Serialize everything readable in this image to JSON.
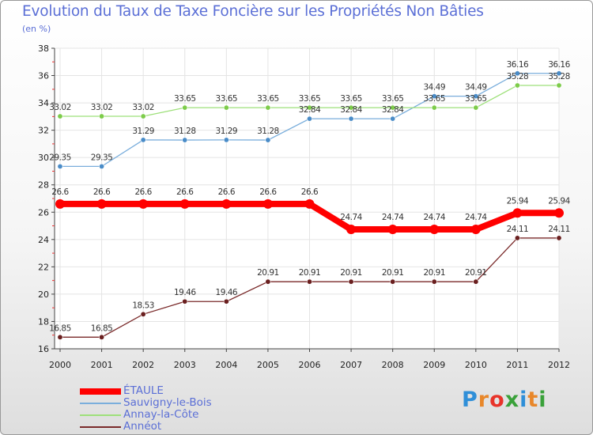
{
  "header": {
    "title": "Evolution du Taux de Taxe Foncière sur les Propriétés Non Bâties",
    "unit": "(en %)"
  },
  "logo": {
    "text": "Proxiti",
    "letters": [
      "P",
      "r",
      "o",
      "x",
      "i",
      "t",
      "i"
    ],
    "colors": [
      "#2f8fd8",
      "#e8872a",
      "#e8342a",
      "#3aa13a",
      "#2f8fd8",
      "#e8872a",
      "#3aa13a"
    ]
  },
  "chart_data": {
    "type": "line",
    "title": "Evolution du Taux de Taxe Foncière sur les Propriétés Non Bâties",
    "ylabel": "(en %)",
    "xlabel": "",
    "x": [
      "2000",
      "2001",
      "2002",
      "2003",
      "2004",
      "2005",
      "2006",
      "2007",
      "2008",
      "2009",
      "2010",
      "2011",
      "2012"
    ],
    "ylim": [
      16,
      38
    ],
    "yticks": [
      "16",
      "18",
      "20",
      "22",
      "24",
      "26",
      "28",
      "30",
      "32",
      "34",
      "36",
      "38"
    ],
    "grid": true,
    "legend": "bottom-left",
    "series": [
      {
        "name": "ÉTAULE",
        "color": "#ff0000",
        "emphasis": true,
        "values": [
          26.6,
          26.6,
          26.6,
          26.6,
          26.6,
          26.6,
          26.6,
          24.74,
          24.74,
          24.74,
          24.74,
          25.94,
          25.94
        ],
        "labels": [
          "26.6",
          "26.6",
          "26.6",
          "26.6",
          "26.6",
          "26.6",
          "26.6",
          "24.74",
          "24.74",
          "24.74",
          "24.74",
          "25.94",
          "25.94"
        ]
      },
      {
        "name": "Sauvigny-le-Bois",
        "color": "#7aaedc",
        "marker": "#4a8cc8",
        "values": [
          29.35,
          29.35,
          31.29,
          31.28,
          31.29,
          31.28,
          32.84,
          32.84,
          32.84,
          34.49,
          34.49,
          36.16,
          36.16
        ],
        "labels": [
          "29.35",
          "29.35",
          "31.29",
          "31.28",
          "31.29",
          "31.28",
          "32.84",
          "32.84",
          "32.84",
          "34.49",
          "34.49",
          "36.16",
          "36.16"
        ]
      },
      {
        "name": "Annay-la-Côte",
        "color": "#9ee07a",
        "marker": "#7dcc4a",
        "values": [
          33.02,
          33.02,
          33.02,
          33.65,
          33.65,
          33.65,
          33.65,
          33.65,
          33.65,
          33.65,
          33.65,
          35.28,
          35.28
        ],
        "labels": [
          "33.02",
          "33.02",
          "33.02",
          "33.65",
          "33.65",
          "33.65",
          "33.65",
          "33.65",
          "33.65",
          "33.65",
          "33.65",
          "35.28",
          "35.28"
        ]
      },
      {
        "name": "Annéot",
        "color": "#7a2a2a",
        "marker": "#6a1f1f",
        "values": [
          16.85,
          16.85,
          18.53,
          19.46,
          19.46,
          20.91,
          20.91,
          20.91,
          20.91,
          20.91,
          20.91,
          24.11,
          24.11
        ],
        "labels": [
          "16.85",
          "16.85",
          "18.53",
          "19.46",
          "19.46",
          "20.91",
          "20.91",
          "20.91",
          "20.91",
          "20.91",
          "20.91",
          "24.11",
          "24.11"
        ]
      }
    ]
  }
}
